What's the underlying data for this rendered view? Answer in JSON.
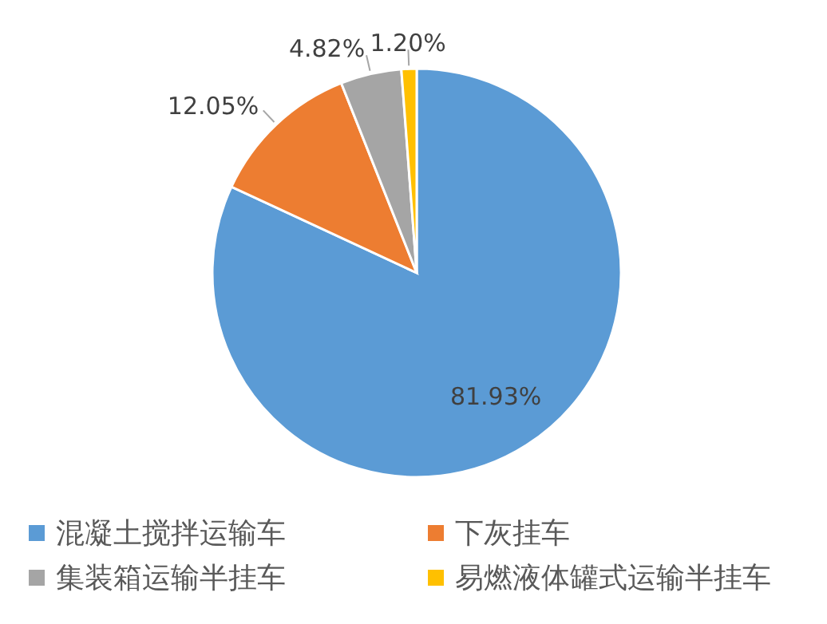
{
  "chart_data": {
    "type": "pie",
    "categories": [
      "混凝土搅拌运输车",
      "下灰挂车",
      "集装箱运输半挂车",
      "易燃液体罐式运输半挂车"
    ],
    "values": [
      81.93,
      12.05,
      4.82,
      1.2
    ],
    "colors": [
      "#5b9bd5",
      "#ed7d31",
      "#a5a5a5",
      "#ffc000"
    ],
    "value_labels": [
      "81.93%",
      "12.05%",
      "4.82%",
      "1.20%"
    ],
    "legend": "bottom"
  }
}
